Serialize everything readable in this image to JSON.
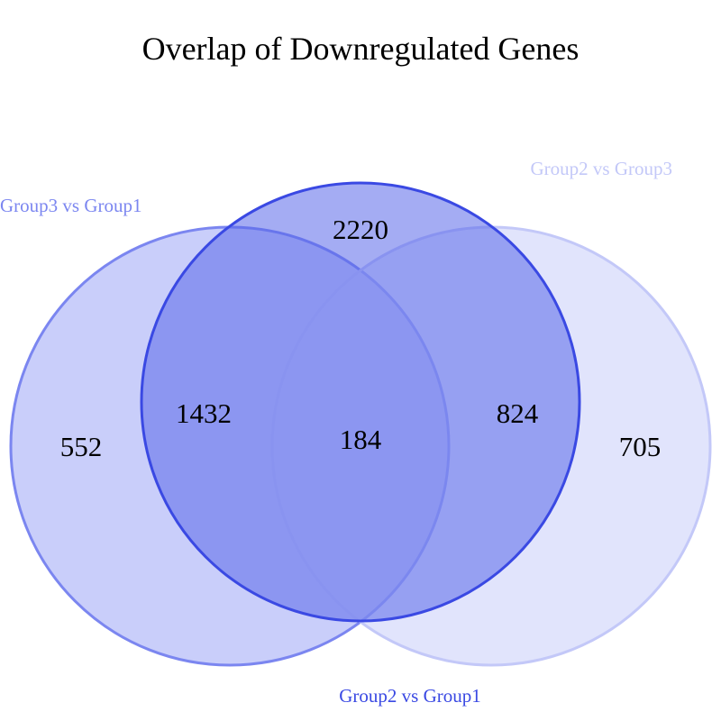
{
  "title": "Overlap of Downregulated Genes",
  "sets": [
    {
      "id": "a",
      "label": "Group3 vs Group1",
      "color": "#7b86f0",
      "fill": "#9da6f5",
      "opacity": 0.55
    },
    {
      "id": "b",
      "label": "Group2 vs Group3",
      "color": "#c3c8f8",
      "fill": "#c9cdfa",
      "opacity": 0.55
    },
    {
      "id": "c",
      "label": "Group2 vs Group1",
      "color": "#3a49e3",
      "fill": "#5a68ea",
      "opacity": 0.55
    }
  ],
  "regions": {
    "only_a": "552",
    "only_b": "705",
    "only_c": "2220",
    "a_c": "1432",
    "b_c": "824",
    "a_b_c": "184"
  }
}
